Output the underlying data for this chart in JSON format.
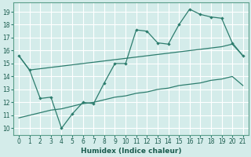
{
  "xlabel": "Humidex (Indice chaleur)",
  "xlim": [
    -0.5,
    21.5
  ],
  "ylim": [
    9.5,
    19.7
  ],
  "yticks": [
    10,
    11,
    12,
    13,
    14,
    15,
    16,
    17,
    18,
    19
  ],
  "xticks": [
    0,
    1,
    2,
    3,
    4,
    5,
    6,
    7,
    8,
    9,
    10,
    11,
    12,
    13,
    14,
    15,
    16,
    17,
    18,
    19,
    20,
    21
  ],
  "line_color": "#2d7d6e",
  "bg_color": "#d4ecea",
  "grid_color": "#ffffff",
  "x_flat": [
    0,
    1,
    2,
    3,
    4,
    5,
    6,
    7,
    8,
    9,
    10,
    11,
    12,
    13,
    14,
    15,
    16,
    17,
    18,
    19,
    20,
    21
  ],
  "y_flat": [
    15.6,
    14.5,
    14.6,
    14.7,
    14.8,
    14.9,
    15.0,
    15.1,
    15.2,
    15.3,
    15.4,
    15.5,
    15.6,
    15.7,
    15.8,
    15.9,
    16.0,
    16.1,
    16.2,
    16.3,
    16.5,
    15.6
  ],
  "x_diag": [
    0,
    1,
    2,
    3,
    4,
    5,
    6,
    7,
    8,
    9,
    10,
    11,
    12,
    13,
    14,
    15,
    16,
    17,
    18,
    19,
    20,
    21
  ],
  "y_diag": [
    10.8,
    11.0,
    11.2,
    11.4,
    11.5,
    11.7,
    11.9,
    12.0,
    12.2,
    12.4,
    12.5,
    12.7,
    12.8,
    13.0,
    13.1,
    13.3,
    13.4,
    13.5,
    13.7,
    13.8,
    14.0,
    13.3
  ],
  "x_zig": [
    0,
    1,
    2,
    3,
    4,
    5,
    6,
    7,
    8,
    9,
    10,
    11,
    12,
    13,
    14,
    15,
    16,
    17,
    18,
    19,
    20,
    21
  ],
  "y_zig": [
    15.6,
    14.5,
    12.3,
    12.4,
    10.0,
    11.1,
    12.0,
    11.9,
    13.5,
    15.0,
    15.0,
    17.6,
    17.5,
    16.6,
    16.5,
    18.0,
    19.2,
    18.8,
    18.6,
    18.5,
    16.6,
    15.6
  ]
}
